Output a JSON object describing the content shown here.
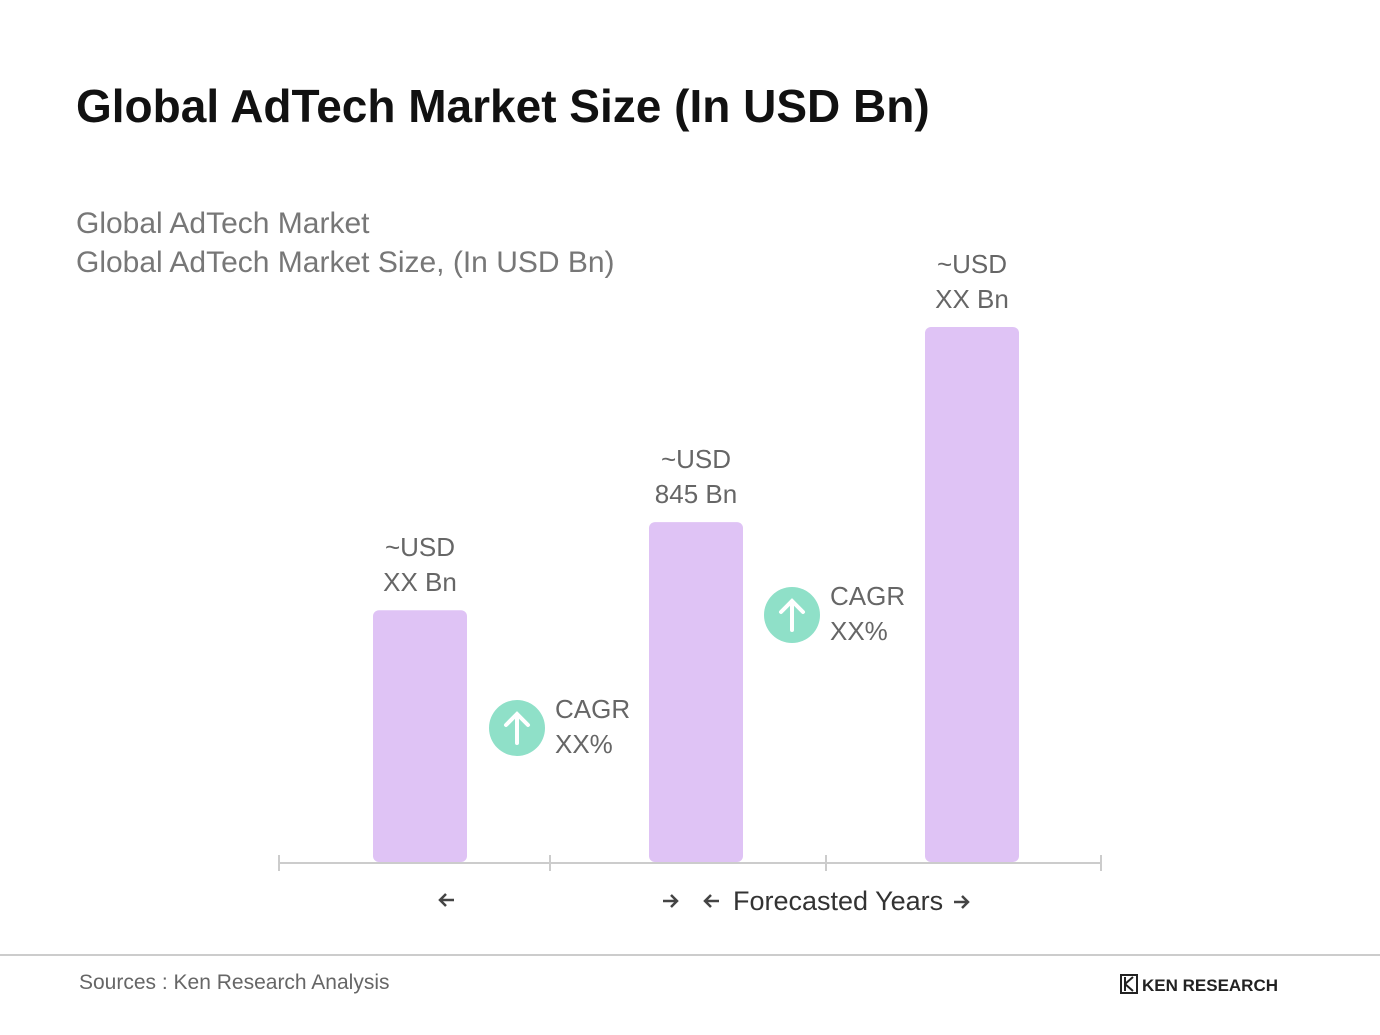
{
  "chart_data": {
    "type": "bar",
    "title": "Global AdTech Market Size (In USD Bn)",
    "subtitle": [
      "Global AdTech Market",
      "Global AdTech Market Size, (In USD Bn)"
    ],
    "categories": [
      null,
      null,
      null
    ],
    "values": [
      626,
      845,
      1330
    ],
    "value_labels": [
      "~USD XX Bn",
      "~USD 845 Bn",
      "~USD XX Bn"
    ],
    "color": "#dfc3f5",
    "annotations": [
      "CAGR XX%",
      "CAGR XX%"
    ],
    "annotation_color": "#8fe0c8",
    "x_label": "Forecasted Years",
    "source": "Sources : Ken Research Analysis",
    "brand": "KEN RESEARCH"
  }
}
